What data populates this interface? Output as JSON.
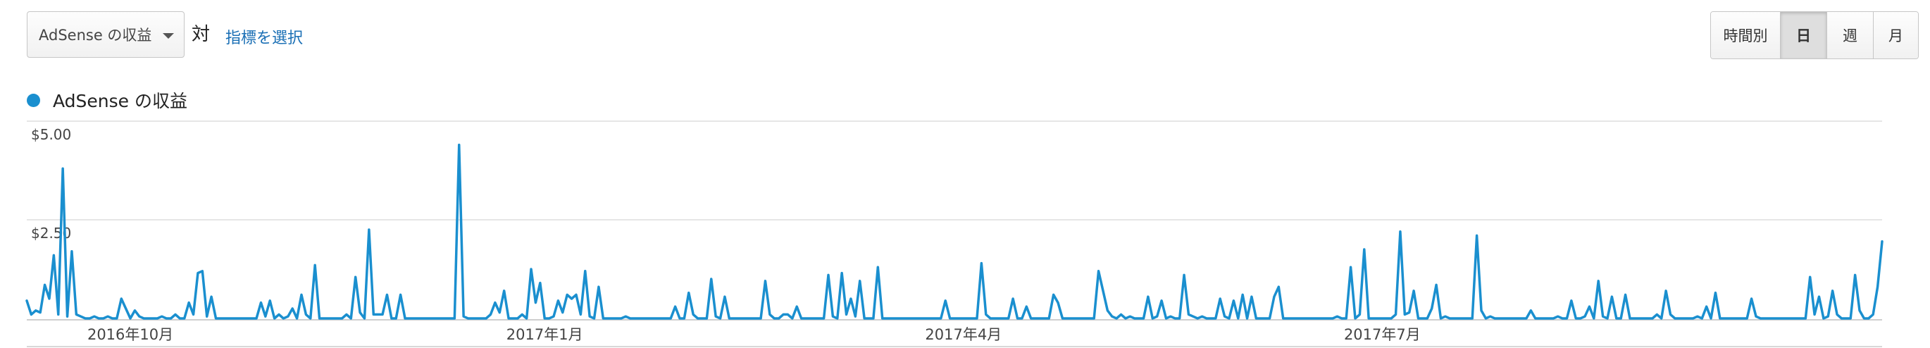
{
  "toolbar": {
    "metric_select_value": "AdSense の収益",
    "vs_label": "対",
    "select_metric_link": "指標を選択",
    "granularity": [
      "時間別",
      "日",
      "週",
      "月"
    ],
    "active_granularity": "日"
  },
  "legend": {
    "label": "AdSense の収益",
    "color": "#1a8fcf"
  },
  "chart_data": {
    "type": "line",
    "series": [
      {
        "name": "AdSense の収益",
        "color": "#1a8fcf"
      }
    ],
    "y_tick_labels": [
      "$5.00",
      "$2.50"
    ],
    "ylim": [
      0,
      5
    ],
    "x_tick_labels": [
      "2016年10月",
      "2017年1月",
      "2017年4月",
      "2017年7月"
    ],
    "grid": true,
    "values": [
      0.45,
      0.1,
      0.2,
      0.15,
      0.85,
      0.5,
      1.6,
      0.1,
      3.8,
      0.05,
      1.7,
      0.1,
      0.05,
      0,
      0,
      0.05,
      0,
      0,
      0.05,
      0,
      0,
      0.5,
      0.25,
      0,
      0.2,
      0.05,
      0,
      0,
      0,
      0,
      0.05,
      0,
      0,
      0.1,
      0,
      0,
      0.4,
      0.1,
      1.15,
      1.2,
      0.05,
      0.55,
      0,
      0,
      0,
      0,
      0,
      0,
      0,
      0,
      0,
      0,
      0.4,
      0.05,
      0.45,
      0,
      0.1,
      0,
      0.05,
      0.25,
      0,
      0.6,
      0.1,
      0,
      1.35,
      0,
      0,
      0,
      0,
      0,
      0,
      0.1,
      0,
      1.05,
      0.15,
      0,
      2.25,
      0.1,
      0.1,
      0.1,
      0.6,
      0,
      0,
      0.6,
      0,
      0,
      0,
      0,
      0,
      0,
      0,
      0,
      0,
      0,
      0,
      0,
      4.4,
      0.05,
      0,
      0,
      0,
      0,
      0,
      0.1,
      0.4,
      0.15,
      0.7,
      0,
      0,
      0,
      0.1,
      0,
      1.25,
      0.4,
      0.9,
      0,
      0,
      0.05,
      0.45,
      0.15,
      0.6,
      0.5,
      0.6,
      0.1,
      1.2,
      0.05,
      0,
      0.8,
      0,
      0,
      0,
      0,
      0,
      0.05,
      0,
      0,
      0,
      0,
      0,
      0,
      0,
      0,
      0,
      0,
      0.3,
      0,
      0,
      0.65,
      0.1,
      0,
      0,
      0,
      1.0,
      0.05,
      0,
      0.55,
      0,
      0,
      0,
      0,
      0,
      0,
      0,
      0,
      0.95,
      0.1,
      0,
      0,
      0.1,
      0.1,
      0,
      0.3,
      0,
      0,
      0,
      0,
      0,
      0,
      1.1,
      0.05,
      0,
      1.15,
      0.1,
      0.5,
      0.05,
      0.95,
      0,
      0,
      0,
      1.3,
      0,
      0,
      0,
      0,
      0,
      0,
      0,
      0,
      0,
      0,
      0,
      0,
      0,
      0,
      0.45,
      0,
      0,
      0,
      0,
      0,
      0,
      0,
      1.4,
      0.1,
      0,
      0,
      0,
      0,
      0,
      0.5,
      0,
      0,
      0.3,
      0,
      0,
      0,
      0,
      0,
      0.6,
      0.4,
      0,
      0,
      0,
      0,
      0,
      0,
      0,
      0,
      1.2,
      0.7,
      0.2,
      0.05,
      0,
      0.1,
      0,
      0.05,
      0,
      0,
      0,
      0.55,
      0,
      0.05,
      0.45,
      0,
      0.05,
      0,
      0,
      1.1,
      0.1,
      0.05,
      0,
      0.05,
      0,
      0,
      0,
      0.5,
      0.05,
      0,
      0.45,
      0,
      0.6,
      0,
      0.55,
      0,
      0,
      0,
      0,
      0.55,
      0.8,
      0,
      0,
      0,
      0,
      0,
      0,
      0,
      0,
      0,
      0,
      0,
      0,
      0.05,
      0,
      0,
      1.3,
      0,
      0.1,
      1.75,
      0,
      0,
      0,
      0,
      0,
      0,
      0.1,
      2.2,
      0.1,
      0.15,
      0.7,
      0,
      0,
      0,
      0.25,
      0.85,
      0,
      0.05,
      0,
      0,
      0,
      0,
      0,
      0,
      2.1,
      0.2,
      0,
      0.05,
      0,
      0,
      0,
      0,
      0,
      0,
      0,
      0,
      0.2,
      0,
      0,
      0,
      0,
      0,
      0.05,
      0,
      0,
      0.45,
      0,
      0,
      0.05,
      0.3,
      0,
      0.95,
      0.05,
      0,
      0.55,
      0,
      0,
      0.6,
      0,
      0,
      0,
      0,
      0,
      0,
      0.1,
      0,
      0.7,
      0.1,
      0,
      0,
      0,
      0,
      0,
      0.05,
      0,
      0.3,
      0,
      0.65,
      0,
      0,
      0,
      0,
      0,
      0,
      0,
      0.5,
      0.05,
      0,
      0,
      0,
      0,
      0,
      0,
      0,
      0,
      0,
      0,
      0,
      1.05,
      0.1,
      0.55,
      0,
      0.05,
      0.7,
      0.1,
      0,
      0,
      0,
      1.1,
      0.2,
      0,
      0,
      0.1,
      0.8,
      1.95
    ]
  }
}
